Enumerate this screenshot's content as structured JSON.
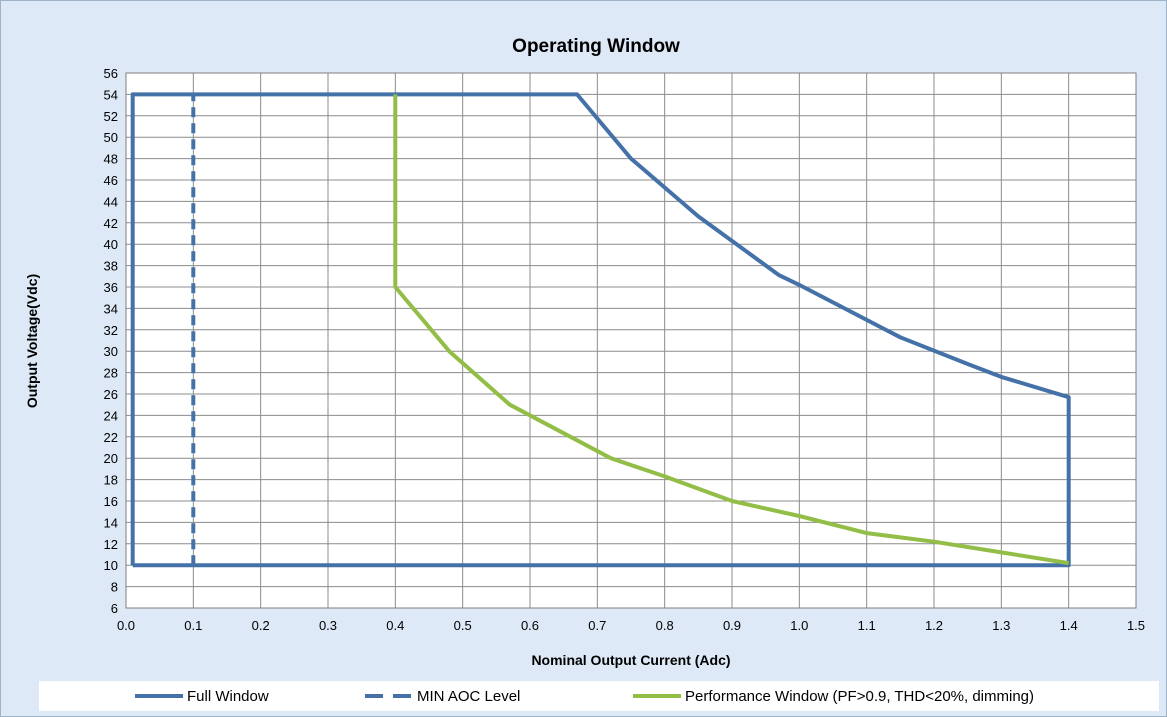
{
  "chart_data": {
    "type": "line",
    "title": "Operating Window",
    "xlabel": "Nominal Output Current (Adc)",
    "ylabel": "Output Voltage(Vdc)",
    "xlim": [
      0.0,
      1.5
    ],
    "ylim": [
      6,
      56
    ],
    "x_ticks": [
      "0.0",
      "0.1",
      "0.2",
      "0.3",
      "0.4",
      "0.5",
      "0.6",
      "0.7",
      "0.8",
      "0.9",
      "1.0",
      "1.1",
      "1.2",
      "1.3",
      "1.4",
      "1.5"
    ],
    "y_ticks": [
      "6",
      "8",
      "10",
      "12",
      "14",
      "16",
      "18",
      "20",
      "22",
      "24",
      "26",
      "28",
      "30",
      "32",
      "34",
      "36",
      "38",
      "40",
      "42",
      "44",
      "46",
      "48",
      "50",
      "52",
      "54",
      "56"
    ],
    "grid": true,
    "legend_position": "bottom",
    "series": [
      {
        "name": "Full Window",
        "color": "#4472a8",
        "style": "solid",
        "points": [
          [
            0.01,
            10
          ],
          [
            0.01,
            54
          ],
          [
            0.67,
            54
          ],
          [
            0.75,
            48
          ],
          [
            0.85,
            42.6
          ],
          [
            0.97,
            37.1
          ],
          [
            1.0,
            36.2
          ],
          [
            1.15,
            31.3
          ],
          [
            1.25,
            28.8
          ],
          [
            1.3,
            27.6
          ],
          [
            1.4,
            25.7
          ],
          [
            1.4,
            10
          ],
          [
            0.01,
            10
          ]
        ]
      },
      {
        "name": "MIN AOC Level",
        "color": "#4472a8",
        "style": "dashed",
        "points": [
          [
            0.1,
            10
          ],
          [
            0.1,
            54
          ]
        ]
      },
      {
        "name": "Performance Window (PF>0.9, THD<20%, dimming)",
        "color": "#92bd47",
        "style": "solid",
        "points": [
          [
            0.4,
            54
          ],
          [
            0.4,
            36
          ],
          [
            0.48,
            30
          ],
          [
            0.57,
            25
          ],
          [
            0.72,
            20
          ],
          [
            0.8,
            18.3
          ],
          [
            0.9,
            16
          ],
          [
            1.0,
            14.6
          ],
          [
            1.1,
            13
          ],
          [
            1.2,
            12.2
          ],
          [
            1.3,
            11.2
          ],
          [
            1.4,
            10.2
          ]
        ]
      }
    ]
  }
}
